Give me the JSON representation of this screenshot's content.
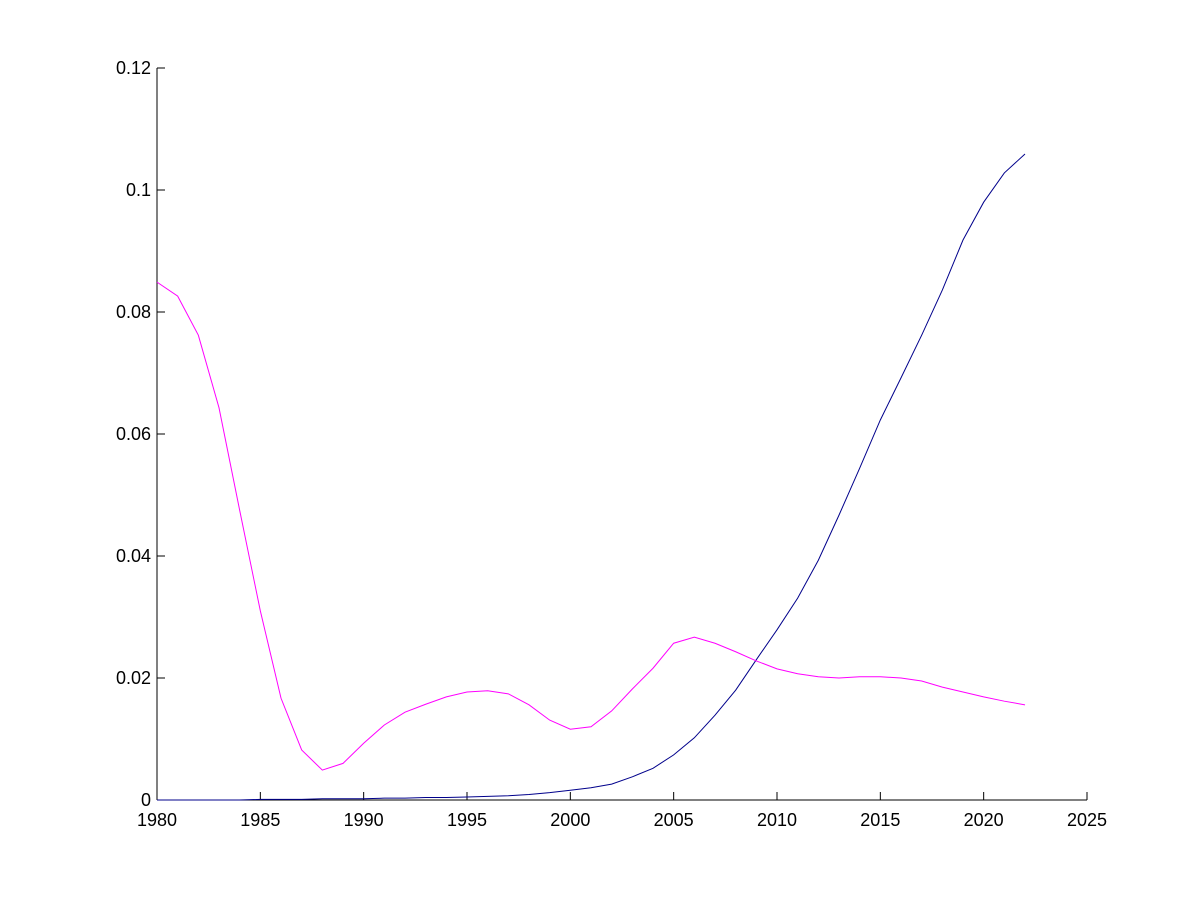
{
  "chart_data": {
    "type": "line",
    "x": [
      1980,
      1981,
      1982,
      1983,
      1984,
      1985,
      1986,
      1987,
      1988,
      1989,
      1990,
      1991,
      1992,
      1993,
      1994,
      1995,
      1996,
      1997,
      1998,
      1999,
      2000,
      2001,
      2002,
      2003,
      2004,
      2005,
      2006,
      2007,
      2008,
      2009,
      2010,
      2011,
      2012,
      2013,
      2014,
      2015,
      2016,
      2017,
      2018,
      2019,
      2020,
      2021,
      2022
    ],
    "series": [
      {
        "color": "#00008b",
        "values": [
          0,
          0,
          0,
          0,
          0,
          0.0001,
          0.0001,
          0.0001,
          0.0002,
          0.0002,
          0.0002,
          0.0003,
          0.0003,
          0.0004,
          0.0004,
          0.0005,
          0.0006,
          0.0007,
          0.0009,
          0.0012,
          0.0016,
          0.002,
          0.0026,
          0.0038,
          0.0052,
          0.0074,
          0.0102,
          0.0139,
          0.018,
          0.023,
          0.0279,
          0.0331,
          0.0393,
          0.0467,
          0.0544,
          0.0623,
          0.0692,
          0.0762,
          0.0836,
          0.0918,
          0.098,
          0.1028,
          0.1059
        ]
      },
      {
        "color": "#ff00ff",
        "values": [
          0.0849,
          0.0826,
          0.0762,
          0.0643,
          0.0475,
          0.031,
          0.0167,
          0.0082,
          0.0049,
          0.006,
          0.0093,
          0.0123,
          0.0144,
          0.0157,
          0.0169,
          0.0177,
          0.0179,
          0.0174,
          0.0156,
          0.0131,
          0.0116,
          0.012,
          0.0146,
          0.0182,
          0.0216,
          0.0257,
          0.0267,
          0.0257,
          0.0243,
          0.0228,
          0.0215,
          0.0207,
          0.0202,
          0.02,
          0.0202,
          0.0202,
          0.02,
          0.0195,
          0.0185,
          0.0177,
          0.0169,
          0.0162,
          0.0156
        ]
      }
    ],
    "xlim": [
      1980,
      2025
    ],
    "xticks": [
      1980,
      1985,
      1990,
      1995,
      2000,
      2005,
      2010,
      2015,
      2020,
      2025
    ],
    "ylim": [
      0,
      0.12
    ],
    "yticks": [
      0,
      0.02,
      0.04,
      0.06,
      0.08,
      0.1,
      0.12
    ]
  }
}
